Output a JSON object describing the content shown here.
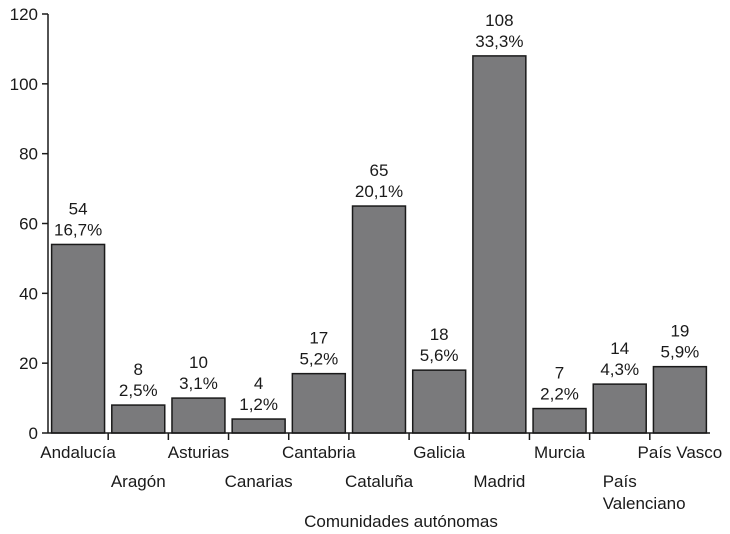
{
  "chart_data": {
    "type": "bar",
    "categories": [
      "Andalucía",
      "Aragón",
      "Asturias",
      "Canarias",
      "Cantabria",
      "Cataluña",
      "Galicia",
      "Madrid",
      "Murcia",
      "País Valenciano",
      "País Vasco"
    ],
    "category_lines": [
      [
        "Andalucía"
      ],
      [
        "Aragón"
      ],
      [
        "Asturias"
      ],
      [
        "Canarias"
      ],
      [
        "Cantabria"
      ],
      [
        "Cataluña"
      ],
      [
        "Galicia"
      ],
      [
        "Madrid"
      ],
      [
        "Murcia"
      ],
      [
        "País",
        "Valenciano"
      ],
      [
        "País Vasco"
      ]
    ],
    "values": [
      54,
      8,
      10,
      4,
      17,
      65,
      18,
      108,
      7,
      14,
      19
    ],
    "percent_labels": [
      "16,7%",
      "2,5%",
      "3,1%",
      "1,2%",
      "5,2%",
      "20,1%",
      "5,6%",
      "33,3%",
      "2,2%",
      "4,3%",
      "5,9%"
    ],
    "xlabel": "Comunidades autónomas",
    "ylabel": "",
    "ylim": [
      0,
      120
    ],
    "yticks": [
      0,
      20,
      40,
      60,
      80,
      100,
      120
    ],
    "grid": false,
    "bar_color": "#7a7a7c",
    "bar_edge_color": "#1a1a1a",
    "axis_color": "#1a1a1a"
  }
}
